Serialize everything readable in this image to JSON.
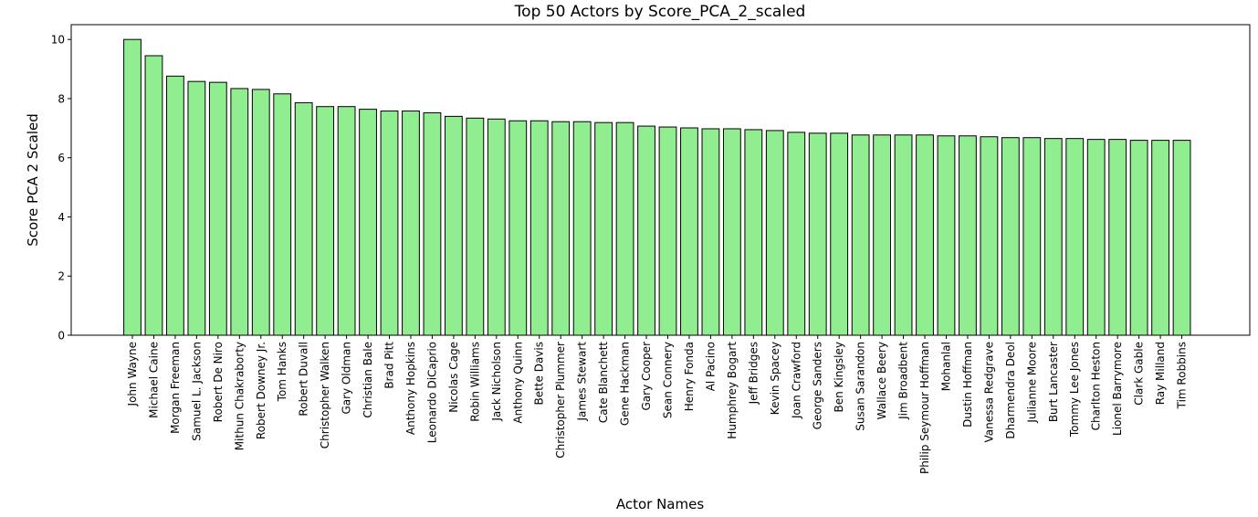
{
  "chart_data": {
    "type": "bar",
    "title": "Top 50 Actors by Score_PCA_2_scaled",
    "xlabel": "Actor Names",
    "ylabel": "Score PCA 2 Scaled",
    "ylim": [
      0,
      10.5
    ],
    "yticks": [
      "0",
      "2",
      "4",
      "6",
      "8",
      "10"
    ],
    "grid": false,
    "bar_color": "#90ee90",
    "edge_color": "#000000",
    "categories": [
      "John Wayne",
      "Michael Caine",
      "Morgan Freeman",
      "Samuel L. Jackson",
      "Robert De Niro",
      "Mithun Chakraborty",
      "Robert Downey Jr.",
      "Tom Hanks",
      "Robert Duvall",
      "Christopher Walken",
      "Gary Oldman",
      "Christian Bale",
      "Brad Pitt",
      "Anthony Hopkins",
      "Leonardo DiCaprio",
      "Nicolas Cage",
      "Robin Williams",
      "Jack Nicholson",
      "Anthony Quinn",
      "Bette Davis",
      "Christopher Plummer",
      "James Stewart",
      "Cate Blanchett",
      "Gene Hackman",
      "Gary Cooper",
      "Sean Connery",
      "Henry Fonda",
      "Al Pacino",
      "Humphrey Bogart",
      "Jeff Bridges",
      "Kevin Spacey",
      "Joan Crawford",
      "George Sanders",
      "Ben Kingsley",
      "Susan Sarandon",
      "Wallace Beery",
      "Jim Broadbent",
      "Philip Seymour Hoffman",
      "Mohanlal",
      "Dustin Hoffman",
      "Vanessa Redgrave",
      "Dharmendra Deol",
      "Julianne Moore",
      "Burt Lancaster",
      "Tommy Lee Jones",
      "Charlton Heston",
      "Lionel Barrymore",
      "Clark Gable",
      "Ray Milland",
      "Tim Robbins"
    ],
    "values": [
      10.0,
      9.45,
      8.76,
      8.58,
      8.55,
      8.34,
      8.31,
      8.16,
      7.86,
      7.73,
      7.73,
      7.64,
      7.58,
      7.58,
      7.52,
      7.4,
      7.34,
      7.31,
      7.25,
      7.25,
      7.22,
      7.22,
      7.19,
      7.19,
      7.07,
      7.04,
      7.01,
      6.98,
      6.98,
      6.95,
      6.92,
      6.86,
      6.83,
      6.83,
      6.77,
      6.77,
      6.77,
      6.77,
      6.74,
      6.74,
      6.71,
      6.68,
      6.68,
      6.65,
      6.65,
      6.62,
      6.62,
      6.59,
      6.59,
      6.59
    ]
  }
}
